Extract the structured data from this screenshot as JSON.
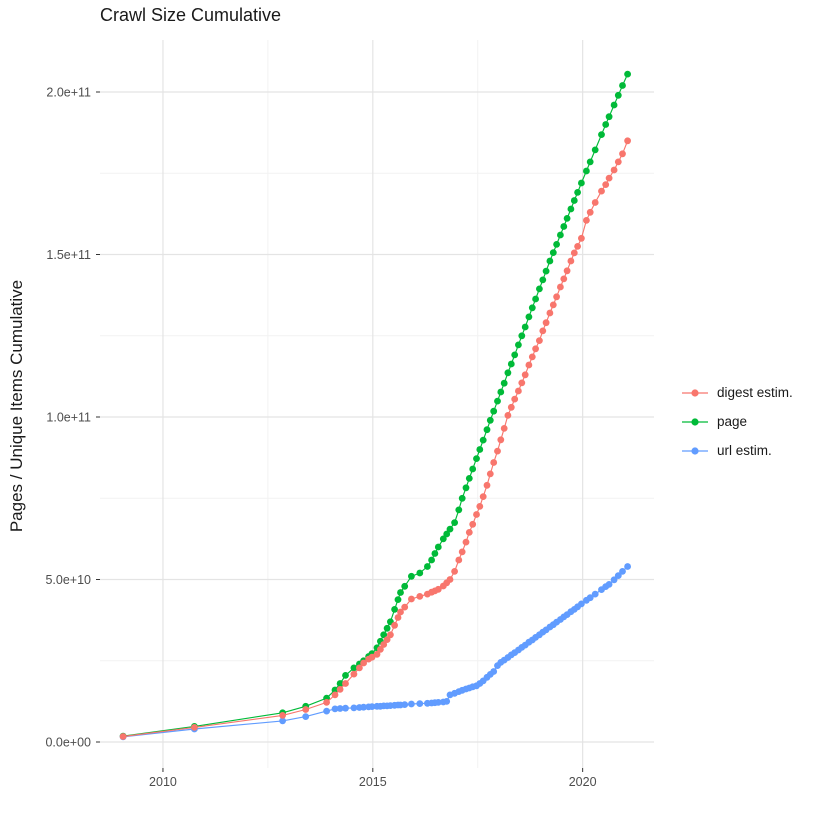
{
  "title": "Crawl Size Cumulative",
  "y_axis_title": "Pages / Unique Items Cumulative",
  "legend": {
    "position": "right",
    "items": [
      {
        "label": "digest estim.",
        "color": "#F8766D"
      },
      {
        "label": "page",
        "color": "#00BA38"
      },
      {
        "label": "url estim.",
        "color": "#619CFF"
      }
    ]
  },
  "chart_data": {
    "type": "scatter",
    "title": "Crawl Size Cumulative",
    "xlabel": "",
    "ylabel": "Pages / Unique Items Cumulative",
    "grid": "major+minor",
    "legend_position": "right",
    "value_unit": "pages (cumulative)",
    "value_scale": 1000000000,
    "xlim": [
      2008.5,
      2021.7
    ],
    "ylim": [
      -8,
      216
    ],
    "x_ticks": [
      2010,
      2015,
      2020
    ],
    "x_tick_labels": [
      "2010",
      "2015",
      "2020"
    ],
    "x_minor_ticks": [
      2012.5,
      2017.5
    ],
    "y_ticks": [
      0,
      50,
      100,
      150,
      200
    ],
    "y_tick_labels": [
      "0.0e+00",
      "5.0e+10",
      "1.0e+11",
      "1.5e+11",
      "2.0e+11"
    ],
    "y_minor_ticks": [
      25,
      75,
      125,
      175
    ],
    "x": [
      2009.05,
      2010.75,
      2012.85,
      2013.4,
      2013.9,
      2014.1,
      2014.22,
      2014.35,
      2014.55,
      2014.68,
      2014.78,
      2014.9,
      2014.98,
      2015.1,
      2015.18,
      2015.26,
      2015.34,
      2015.42,
      2015.52,
      2015.6,
      2015.66,
      2015.76,
      2015.92,
      2016.12,
      2016.3,
      2016.4,
      2016.48,
      2016.56,
      2016.68,
      2016.76,
      2016.84,
      2016.95,
      2017.05,
      2017.13,
      2017.22,
      2017.3,
      2017.38,
      2017.47,
      2017.55,
      2017.63,
      2017.72,
      2017.8,
      2017.88,
      2017.97,
      2018.05,
      2018.13,
      2018.22,
      2018.3,
      2018.38,
      2018.47,
      2018.55,
      2018.63,
      2018.72,
      2018.8,
      2018.88,
      2018.97,
      2019.05,
      2019.13,
      2019.22,
      2019.3,
      2019.38,
      2019.47,
      2019.55,
      2019.63,
      2019.72,
      2019.8,
      2019.88,
      2019.97,
      2020.09,
      2020.18,
      2020.3,
      2020.45,
      2020.55,
      2020.63,
      2020.75,
      2020.85,
      2020.95,
      2021.07
    ],
    "series": [
      {
        "name": "digest estim.",
        "color": "#F8766D",
        "values": [
          1.7,
          4.5,
          8.2,
          10,
          12.2,
          14.5,
          16.2,
          18,
          20.9,
          22.8,
          24.3,
          25.5,
          26.1,
          27,
          28.5,
          30,
          31.5,
          33,
          35.9,
          38.3,
          40,
          41.5,
          44,
          44.8,
          45.5,
          46.1,
          46.5,
          47,
          48,
          49,
          50,
          52.5,
          56,
          58.5,
          61.5,
          64.5,
          67,
          70,
          72.5,
          75.5,
          79,
          82.5,
          86,
          89.5,
          93,
          96.5,
          100.5,
          103,
          105.5,
          108,
          110.5,
          113,
          116,
          118.5,
          121,
          123.5,
          126.5,
          129,
          132,
          134.5,
          137,
          140,
          142.5,
          145,
          148,
          150.5,
          152.5,
          155,
          160.5,
          163,
          166,
          169.5,
          171.5,
          173.5,
          176,
          178.5,
          181,
          185
        ]
      },
      {
        "name": "page",
        "color": "#00BA38",
        "values": [
          1.8,
          4.8,
          9,
          11,
          13.5,
          16,
          18,
          20.5,
          22.8,
          24,
          25,
          26.3,
          27.2,
          29,
          31,
          33,
          35,
          37,
          40.8,
          43.8,
          46,
          47.9,
          51,
          52,
          54,
          56,
          58,
          60,
          62.5,
          64,
          65.5,
          67.5,
          71.4,
          75,
          78.2,
          81.1,
          84,
          87.2,
          90,
          92.9,
          96.1,
          99,
          101.8,
          104.9,
          107.7,
          110.4,
          113.6,
          116.3,
          119.1,
          122.2,
          125,
          127.7,
          130.8,
          133.6,
          136.3,
          139.4,
          142.2,
          144.9,
          148,
          150.6,
          153.1,
          156,
          158.6,
          161.1,
          164,
          166.6,
          169.1,
          172,
          175.7,
          178.5,
          182.2,
          186.9,
          190,
          192.4,
          196,
          199,
          202,
          205.5
        ]
      },
      {
        "name": "url estim.",
        "color": "#619CFF",
        "values": [
          1.6,
          4,
          6.5,
          7.8,
          9.5,
          10.2,
          10.3,
          10.4,
          10.5,
          10.6,
          10.7,
          10.8,
          10.9,
          11,
          11,
          11.1,
          11.1,
          11.2,
          11.3,
          11.4,
          11.4,
          11.5,
          11.7,
          11.8,
          11.9,
          12,
          12.1,
          12.2,
          12.3,
          12.5,
          14.5,
          15,
          15.5,
          15.9,
          16.3,
          16.6,
          17,
          17.3,
          18,
          18.8,
          19.9,
          20.8,
          21.7,
          23.5,
          24.5,
          25.2,
          26,
          26.8,
          27.5,
          28.3,
          29.1,
          29.8,
          30.7,
          31.4,
          32.2,
          33,
          33.8,
          34.5,
          35.4,
          36.1,
          36.9,
          37.7,
          38.5,
          39.2,
          40.1,
          40.8,
          41.6,
          42.5,
          43.6,
          44.4,
          45.5,
          46.9,
          47.8,
          48.5,
          49.9,
          51.2,
          52.5,
          54
        ]
      }
    ]
  }
}
